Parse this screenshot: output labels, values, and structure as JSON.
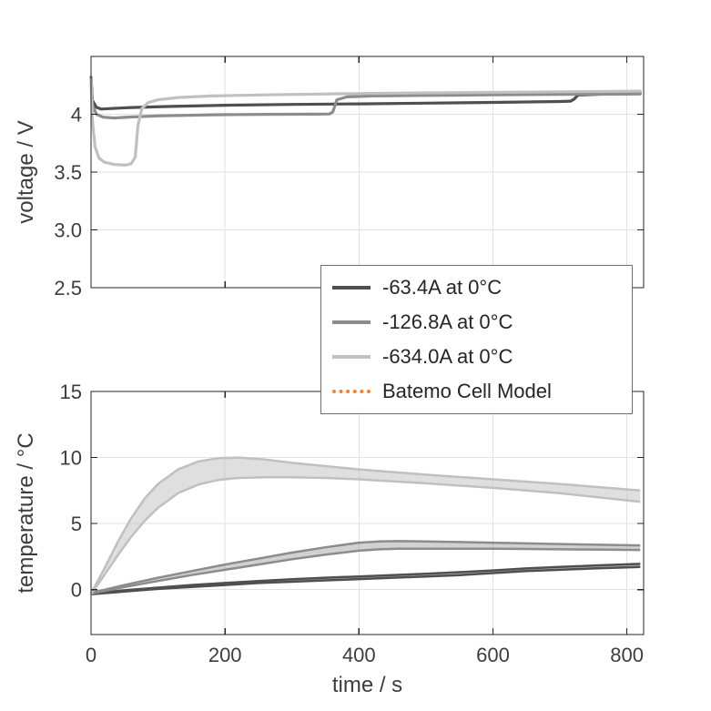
{
  "figure": {
    "background": "#ffffff",
    "axis_color": "#262626",
    "grid_color": "#e2e2e2",
    "text_color": "#3d3d3d"
  },
  "legend": {
    "entries": [
      {
        "label": "-63.4A at 0°C",
        "color": "#4f4f4f",
        "style": "solid"
      },
      {
        "label": "-126.8A at 0°C",
        "color": "#8c8c8c",
        "style": "solid"
      },
      {
        "label": "-634.0A at 0°C",
        "color": "#c0c0c0",
        "style": "solid"
      },
      {
        "label": "Batemo Cell Model",
        "color": "#ff7f27",
        "style": "dotted"
      }
    ]
  },
  "chart_data": [
    {
      "type": "line",
      "name": "voltage-plot",
      "title": "",
      "xlabel": "",
      "ylabel": "voltage / V",
      "xlim": [
        0,
        825
      ],
      "ylim": [
        2.5,
        4.5
      ],
      "xticks": [
        0,
        200,
        400,
        600,
        800
      ],
      "xtick_labels": [
        "0",
        "200",
        "400",
        "600",
        "800"
      ],
      "yticks": [
        2.5,
        3.0,
        3.5,
        4.0
      ],
      "ytick_labels": [
        "2.5",
        "3.0",
        "3.5",
        "4"
      ],
      "grid": true,
      "legend_position": "below-right",
      "series": [
        {
          "name": "-63.4A at 0°C",
          "color": "#4f4f4f",
          "x": [
            0,
            2,
            8,
            15,
            30,
            60,
            120,
            200,
            300,
            400,
            500,
            600,
            700,
            716,
            721,
            727,
            760,
            820
          ],
          "y": [
            4.32,
            4.12,
            4.06,
            4.045,
            4.05,
            4.058,
            4.068,
            4.078,
            4.085,
            4.09,
            4.096,
            4.102,
            4.11,
            4.113,
            4.13,
            4.166,
            4.173,
            4.177
          ]
        },
        {
          "name": "-126.8A at 0°C",
          "color": "#8c8c8c",
          "x": [
            0,
            2,
            8,
            18,
            35,
            60,
            100,
            180,
            260,
            340,
            356,
            361,
            367,
            382,
            420,
            500,
            600,
            700,
            820
          ],
          "y": [
            4.32,
            4.08,
            4.0,
            3.975,
            3.968,
            3.976,
            3.986,
            3.995,
            3.999,
            4.001,
            4.002,
            4.02,
            4.125,
            4.15,
            4.158,
            4.163,
            4.168,
            4.172,
            4.176
          ]
        },
        {
          "name": "-634.0A at 0°C",
          "color": "#c0c0c0",
          "x": [
            0,
            2,
            6,
            12,
            20,
            35,
            50,
            60,
            66,
            70,
            76,
            85,
            100,
            130,
            180,
            260,
            360,
            480,
            620,
            820
          ],
          "y": [
            4.3,
            3.95,
            3.72,
            3.62,
            3.585,
            3.565,
            3.56,
            3.572,
            3.63,
            3.9,
            4.05,
            4.1,
            4.125,
            4.145,
            4.158,
            4.168,
            4.176,
            4.184,
            4.19,
            4.2
          ]
        }
      ]
    },
    {
      "type": "band",
      "name": "temperature-plot",
      "title": "",
      "xlabel": "time / s",
      "ylabel": "temperature / °C",
      "xlim": [
        0,
        825
      ],
      "ylim": [
        -3.4,
        15
      ],
      "xticks": [
        0,
        200,
        400,
        600,
        800
      ],
      "xtick_labels": [
        "0",
        "200",
        "400",
        "600",
        "800"
      ],
      "yticks": [
        0,
        5,
        10,
        15
      ],
      "ytick_labels": [
        "0",
        "5",
        "10",
        "15"
      ],
      "grid": true,
      "series": [
        {
          "name": "-63.4A at 0°C",
          "color": "#4f4f4f",
          "fill_opacity": 0.35,
          "x": [
            0,
            50,
            100,
            150,
            200,
            250,
            300,
            350,
            400,
            450,
            500,
            550,
            600,
            650,
            700,
            750,
            820
          ],
          "lower": [
            -0.35,
            -0.15,
            0.05,
            0.2,
            0.35,
            0.5,
            0.6,
            0.7,
            0.8,
            0.9,
            1.0,
            1.1,
            1.25,
            1.4,
            1.5,
            1.6,
            1.72
          ],
          "upper": [
            -0.3,
            -0.05,
            0.15,
            0.35,
            0.5,
            0.65,
            0.78,
            0.9,
            1.0,
            1.1,
            1.2,
            1.32,
            1.45,
            1.6,
            1.72,
            1.82,
            1.95
          ]
        },
        {
          "name": "-126.8A at 0°C",
          "color": "#8c8c8c",
          "fill_opacity": 0.4,
          "x": [
            0,
            50,
            100,
            150,
            200,
            250,
            300,
            350,
            400,
            430,
            460,
            500,
            550,
            600,
            650,
            700,
            820
          ],
          "lower": [
            -0.3,
            0.2,
            0.65,
            1.1,
            1.5,
            1.9,
            2.3,
            2.65,
            2.95,
            3.05,
            3.1,
            3.1,
            3.1,
            3.1,
            3.08,
            3.05,
            3.0
          ],
          "upper": [
            -0.25,
            0.35,
            0.9,
            1.4,
            1.9,
            2.35,
            2.8,
            3.2,
            3.55,
            3.65,
            3.67,
            3.65,
            3.6,
            3.55,
            3.5,
            3.45,
            3.35
          ]
        },
        {
          "name": "-634.0A at 0°C",
          "color": "#c0c0c0",
          "fill_opacity": 0.5,
          "x": [
            0,
            20,
            40,
            60,
            80,
            100,
            130,
            160,
            190,
            220,
            260,
            300,
            350,
            400,
            450,
            500,
            600,
            700,
            820
          ],
          "lower": [
            -0.35,
            1.1,
            2.6,
            4.0,
            5.2,
            6.2,
            7.3,
            7.95,
            8.3,
            8.45,
            8.5,
            8.5,
            8.45,
            8.35,
            8.2,
            8.05,
            7.7,
            7.3,
            6.65
          ],
          "upper": [
            -0.3,
            1.6,
            3.6,
            5.4,
            6.9,
            8.0,
            9.1,
            9.7,
            9.95,
            10.0,
            9.85,
            9.6,
            9.35,
            9.1,
            8.9,
            8.7,
            8.35,
            8.0,
            7.5
          ]
        }
      ]
    }
  ]
}
